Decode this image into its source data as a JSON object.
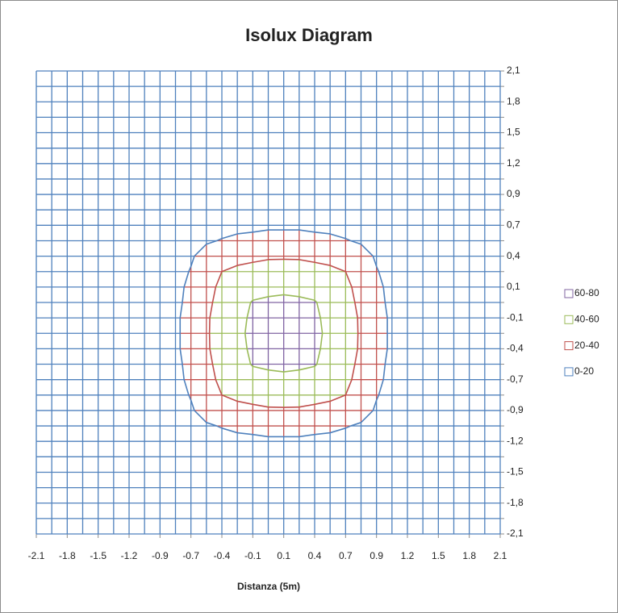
{
  "chart_data": {
    "type": "contour",
    "title": "Isolux Diagram",
    "x_label": "Distanza (5m)",
    "x_categories": [
      "-2.1",
      null,
      "-1.8",
      null,
      "-1.5",
      null,
      "-1.2",
      null,
      "-0.9",
      null,
      "-0.7",
      null,
      "-0.4",
      null,
      "-0.1",
      null,
      "0.1",
      null,
      "0.4",
      null,
      "0.7",
      null,
      "0.9",
      null,
      "1.2",
      null,
      "1.5",
      null,
      "1.8",
      null,
      "2.1"
    ],
    "y_categories": [
      "2,1",
      null,
      "1,8",
      null,
      "1,5",
      null,
      "1,2",
      null,
      "0,9",
      null,
      "0,7",
      null,
      "0,4",
      null,
      "0,1",
      null,
      "-0,1",
      null,
      "-0,4",
      null,
      "-0,7",
      null,
      "-0,9",
      null,
      "-1,2",
      null,
      "-1,5",
      null,
      "-1,8",
      null,
      "-2,1"
    ],
    "series": [
      {
        "name": "60-80",
        "color": "#8064a2",
        "range": [
          60,
          80
        ]
      },
      {
        "name": "40-60",
        "color": "#9bbb59",
        "range": [
          40,
          60
        ]
      },
      {
        "name": "20-40",
        "color": "#c0504d",
        "range": [
          20,
          40
        ]
      },
      {
        "name": "0-20",
        "color": "#4f81bd",
        "range": [
          0,
          20
        ]
      }
    ],
    "z": [
      [
        0,
        0,
        0,
        0,
        0,
        0,
        0,
        0,
        0,
        0,
        0,
        0,
        0,
        0,
        0,
        0,
        0,
        0,
        0,
        0,
        0,
        0,
        0,
        0,
        0,
        0,
        0,
        0,
        0,
        0,
        0
      ],
      [
        0,
        0,
        0,
        0,
        0,
        0,
        0,
        0,
        0,
        0,
        0,
        0,
        0,
        0,
        0,
        0,
        0,
        0,
        0,
        0,
        0,
        0,
        0,
        0,
        0,
        0,
        0,
        0,
        0,
        0,
        0
      ],
      [
        0,
        0,
        0,
        0,
        0,
        0,
        0,
        0,
        0,
        0,
        0,
        0,
        0,
        0,
        0,
        0,
        0,
        0,
        0,
        0,
        0,
        0,
        0,
        0,
        0,
        0,
        0,
        0,
        0,
        0,
        0
      ],
      [
        0,
        0,
        0,
        0,
        0,
        0,
        0,
        0,
        0,
        0,
        0,
        0,
        0,
        0,
        0,
        0,
        0,
        0,
        0,
        0,
        0,
        0,
        0,
        0,
        0,
        0,
        0,
        0,
        0,
        0,
        0
      ],
      [
        0,
        0,
        0,
        0,
        0,
        0,
        0,
        0,
        0,
        0,
        0,
        0,
        0,
        0,
        0,
        0,
        0,
        0,
        0,
        0,
        0,
        0,
        0,
        0,
        0,
        0,
        0,
        0,
        0,
        0,
        0
      ],
      [
        0,
        0,
        0,
        0,
        0,
        0,
        0,
        0,
        0,
        1,
        1,
        1,
        1,
        1,
        1,
        1,
        1,
        1,
        1,
        1,
        1,
        1,
        1,
        1,
        0,
        0,
        0,
        0,
        0,
        0,
        0
      ],
      [
        0,
        0,
        0,
        0,
        0,
        0,
        1,
        1,
        1,
        1,
        1,
        2,
        2,
        2,
        2,
        2,
        2,
        2,
        2,
        2,
        2,
        2,
        1,
        1,
        1,
        1,
        1,
        0,
        0,
        0,
        0
      ],
      [
        0,
        0,
        0,
        0,
        0,
        1,
        1,
        1,
        2,
        2,
        3,
        3,
        3,
        4,
        4,
        4,
        4,
        4,
        4,
        4,
        3,
        3,
        3,
        2,
        2,
        1,
        1,
        1,
        0,
        0,
        0
      ],
      [
        0,
        0,
        0,
        0,
        0,
        1,
        1,
        2,
        3,
        4,
        4,
        5,
        5,
        6,
        6,
        6,
        6,
        6,
        6,
        6,
        5,
        5,
        4,
        4,
        3,
        2,
        1,
        1,
        0,
        0,
        0
      ],
      [
        0,
        0,
        0,
        0,
        0,
        1,
        2,
        3,
        5,
        6,
        6,
        8,
        8,
        9,
        10,
        10,
        10,
        10,
        10,
        9,
        8,
        8,
        6,
        6,
        5,
        3,
        2,
        1,
        0,
        0,
        0
      ],
      [
        0,
        0,
        0,
        0,
        1,
        1,
        2,
        4,
        6,
        8,
        10,
        12,
        14,
        15,
        16,
        17,
        17,
        17,
        16,
        15,
        14,
        12,
        10,
        8,
        6,
        4,
        2,
        1,
        1,
        0,
        0
      ],
      [
        0,
        0,
        0,
        0,
        1,
        1,
        3,
        4,
        6,
        10,
        16,
        18,
        21,
        24,
        25,
        27,
        27,
        27,
        25,
        24,
        21,
        18,
        16,
        10,
        6,
        4,
        3,
        1,
        1,
        0,
        0
      ],
      [
        0,
        0,
        0,
        0,
        1,
        2,
        3,
        5,
        8,
        12,
        18,
        27,
        31,
        34,
        36,
        38,
        38,
        38,
        36,
        34,
        31,
        27,
        18,
        12,
        8,
        5,
        3,
        2,
        1,
        0,
        0
      ],
      [
        0,
        0,
        0,
        0,
        1,
        2,
        3,
        5,
        8,
        14,
        21,
        31,
        40,
        44,
        46,
        47,
        48,
        47,
        46,
        44,
        40,
        31,
        21,
        14,
        8,
        5,
        3,
        2,
        1,
        0,
        0
      ],
      [
        0,
        0,
        0,
        0,
        1,
        2,
        4,
        6,
        9,
        15,
        24,
        34,
        44,
        51,
        54,
        55,
        56,
        55,
        54,
        51,
        44,
        34,
        24,
        15,
        9,
        6,
        4,
        2,
        1,
        0,
        0
      ],
      [
        0,
        0,
        0,
        0,
        1,
        2,
        4,
        6,
        10,
        16,
        25,
        36,
        46,
        54,
        61,
        63,
        64,
        63,
        61,
        54,
        46,
        36,
        25,
        16,
        10,
        6,
        4,
        2,
        1,
        0,
        0
      ],
      [
        0,
        0,
        0,
        0,
        1,
        2,
        4,
        6,
        10,
        17,
        27,
        38,
        47,
        55,
        63,
        69,
        70,
        69,
        63,
        55,
        47,
        38,
        27,
        17,
        10,
        6,
        4,
        2,
        1,
        0,
        0
      ],
      [
        0,
        0,
        0,
        0,
        1,
        2,
        4,
        6,
        10,
        17,
        27,
        38,
        48,
        56,
        64,
        70,
        76,
        70,
        64,
        56,
        48,
        38,
        27,
        17,
        10,
        6,
        4,
        2,
        1,
        0,
        0
      ],
      [
        0,
        0,
        0,
        0,
        1,
        2,
        4,
        6,
        10,
        17,
        27,
        38,
        47,
        55,
        63,
        69,
        70,
        69,
        63,
        55,
        47,
        38,
        27,
        17,
        10,
        6,
        4,
        2,
        1,
        0,
        0
      ],
      [
        0,
        0,
        0,
        0,
        1,
        2,
        4,
        6,
        10,
        16,
        25,
        36,
        46,
        54,
        61,
        63,
        64,
        63,
        61,
        54,
        46,
        36,
        25,
        16,
        10,
        6,
        4,
        2,
        1,
        0,
        0
      ],
      [
        0,
        0,
        0,
        0,
        1,
        2,
        4,
        6,
        9,
        15,
        24,
        34,
        44,
        51,
        54,
        55,
        56,
        55,
        54,
        51,
        44,
        34,
        24,
        15,
        9,
        6,
        4,
        2,
        1,
        0,
        0
      ],
      [
        0,
        0,
        0,
        0,
        1,
        2,
        3,
        5,
        8,
        14,
        21,
        31,
        40,
        44,
        46,
        47,
        48,
        47,
        46,
        44,
        40,
        31,
        21,
        14,
        8,
        5,
        3,
        2,
        1,
        0,
        0
      ],
      [
        0,
        0,
        0,
        0,
        1,
        2,
        3,
        5,
        8,
        12,
        18,
        27,
        31,
        34,
        36,
        38,
        38,
        38,
        36,
        34,
        31,
        27,
        18,
        12,
        8,
        5,
        3,
        2,
        1,
        0,
        0
      ],
      [
        0,
        0,
        0,
        0,
        1,
        1,
        3,
        4,
        6,
        10,
        16,
        18,
        21,
        24,
        25,
        27,
        27,
        27,
        25,
        24,
        21,
        18,
        16,
        10,
        6,
        4,
        3,
        1,
        1,
        0,
        0
      ],
      [
        0,
        0,
        0,
        0,
        1,
        1,
        2,
        4,
        6,
        8,
        10,
        12,
        14,
        15,
        16,
        17,
        17,
        17,
        16,
        15,
        14,
        12,
        10,
        8,
        6,
        4,
        2,
        1,
        1,
        0,
        0
      ],
      [
        0,
        0,
        0,
        0,
        0,
        1,
        2,
        3,
        5,
        6,
        6,
        8,
        8,
        9,
        10,
        10,
        10,
        10,
        10,
        9,
        8,
        8,
        6,
        6,
        5,
        3,
        2,
        1,
        0,
        0,
        0
      ],
      [
        0,
        0,
        0,
        0,
        0,
        1,
        1,
        2,
        3,
        4,
        4,
        5,
        5,
        6,
        6,
        6,
        6,
        6,
        6,
        6,
        5,
        5,
        4,
        4,
        3,
        2,
        1,
        1,
        0,
        0,
        0
      ],
      [
        0,
        0,
        0,
        0,
        0,
        1,
        1,
        1,
        2,
        2,
        3,
        3,
        3,
        4,
        4,
        4,
        4,
        4,
        4,
        4,
        3,
        3,
        3,
        2,
        2,
        1,
        1,
        1,
        0,
        0,
        0
      ],
      [
        0,
        0,
        0,
        0,
        0,
        0,
        1,
        1,
        1,
        1,
        1,
        2,
        2,
        2,
        2,
        2,
        2,
        2,
        2,
        2,
        2,
        2,
        1,
        1,
        1,
        1,
        1,
        0,
        0,
        0,
        0
      ],
      [
        0,
        0,
        0,
        0,
        0,
        0,
        0,
        0,
        0,
        1,
        1,
        1,
        1,
        1,
        1,
        1,
        1,
        1,
        1,
        1,
        1,
        1,
        1,
        1,
        0,
        0,
        0,
        0,
        0,
        0,
        0
      ],
      [
        0,
        0,
        0,
        0,
        0,
        0,
        0,
        0,
        0,
        0,
        0,
        0,
        0,
        0,
        0,
        0,
        0,
        0,
        0,
        0,
        0,
        0,
        0,
        0,
        0,
        0,
        0,
        0,
        0,
        0,
        0
      ]
    ]
  }
}
